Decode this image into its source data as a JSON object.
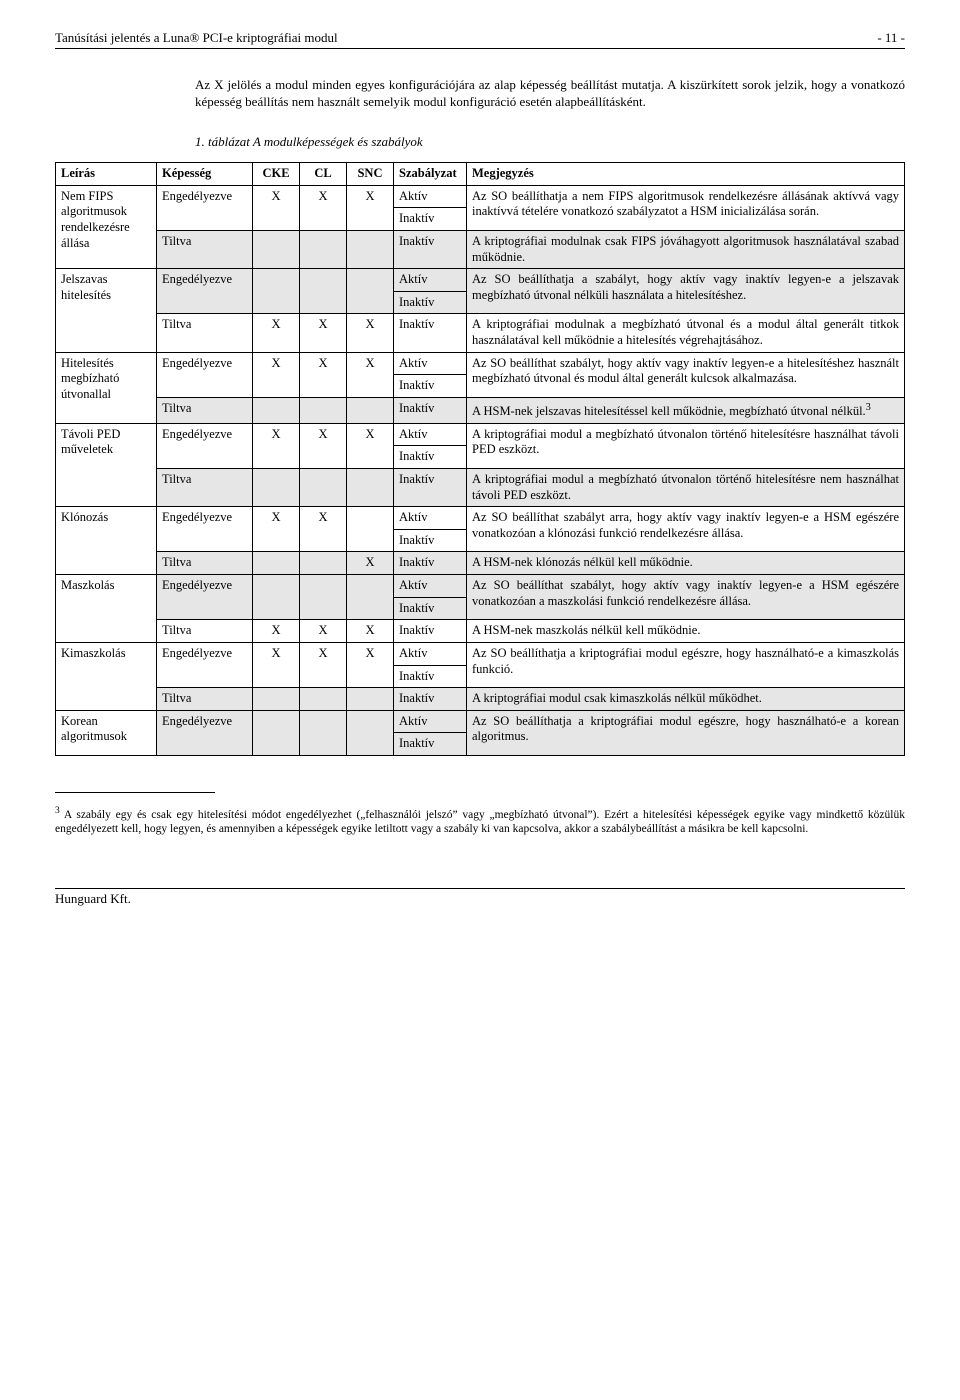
{
  "header": {
    "title": "Tanúsítási jelentés a Luna® PCI-e kriptográfiai modul",
    "page_num": "- 11 -"
  },
  "intro": "Az X jelölés a modul minden egyes konfigurációjára az alap képesség beállítást mutatja. A kiszürkített sorok jelzik, hogy a vonatkozó képesség beállítás nem használt semelyik modul konfiguráció esetén alapbeállításként.",
  "caption": "1. táblázat A modulképességek és szabályok",
  "cols": {
    "c1": "Leírás",
    "c2": "Képesség",
    "c3": "CKE",
    "c4": "CL",
    "c5": "SNC",
    "c6": "Szabályzat",
    "c7": "Megjegyzés"
  },
  "lbl": {
    "eng": "Engedélyezve",
    "tilt": "Tiltva",
    "aktiv": "Aktív",
    "inaktiv": "Inaktív",
    "X": "X"
  },
  "groups": [
    {
      "leiras": "Nem FIPS algoritmusok rendelkezésre állása",
      "eng_meg": "Az SO beállíthatja a nem FIPS algoritmusok rendelkezésre állásának aktívvá vagy inaktívvá tételére vonatkozó szabályzatot a HSM inicializálása során.",
      "tilt_meg": "A kriptográfiai modulnak csak FIPS jóváhagyott algoritmusok használatával szabad működnie."
    },
    {
      "leiras": "Jelszavas hitelesítés",
      "eng_meg": "Az SO beállíthatja a szabályt, hogy aktív vagy inaktív legyen-e a jelszavak megbízható útvonal nélküli használata a hitelesítéshez.",
      "tilt_meg": "A kriptográfiai modulnak a megbízható útvonal és a modul által generált titkok használatával kell működnie a hitelesítés végrehajtásához."
    },
    {
      "leiras": "Hitelesítés megbízható útvonallal",
      "eng_meg": "Az SO beállíthat szabályt, hogy aktív vagy inaktív legyen-e a hitelesítéshez használt megbízható útvonal és modul által generált kulcsok alkalmazása.",
      "tilt_meg": "A HSM-nek jelszavas hitelesítéssel kell működnie, megbízható útvonal nélkül."
    },
    {
      "leiras": "Távoli PED műveletek",
      "eng_meg": "A kriptográfiai modul a megbízható útvonalon történő hitelesítésre használhat távoli PED eszközt.",
      "tilt_meg": "A kriptográfiai modul a megbízható útvonalon történő hitelesítésre nem használhat távoli PED eszközt."
    },
    {
      "leiras": "Klónozás",
      "eng_meg": "Az SO beállíthat szabályt arra, hogy aktív vagy inaktív legyen-e a HSM egészére vonatkozóan a klónozási funkció rendelkezésre állása.",
      "tilt_meg": "A HSM-nek klónozás nélkül kell működnie."
    },
    {
      "leiras": "Maszkolás",
      "eng_meg": "Az SO beállíthat szabályt, hogy aktív vagy inaktív legyen-e a HSM egészére vonatkozóan a maszkolási funkció rendelkezésre állása.",
      "tilt_meg": "A HSM-nek maszkolás nélkül kell működnie."
    },
    {
      "leiras": "Kimaszkolás",
      "eng_meg": "Az SO beállíthatja a kriptográfiai modul egészre, hogy használható-e a kimaszkolás funkció.",
      "tilt_meg": "A kriptográfiai modul csak kimaszkolás nélkül működhet."
    },
    {
      "leiras": "Korean algoritmusok",
      "eng_meg": "Az SO beállíthatja a kriptográfiai modul egészre, hogy használható-e a korean algoritmus.",
      "tilt_meg": ""
    }
  ],
  "footnote_marker": "3",
  "footnote": "A szabály egy és csak egy hitelesítési módot engedélyezhet („felhasználói jelszó” vagy „megbízható útvonal”). Ezért a hitelesítési képességek egyike vagy mindkettő közülük engedélyezett kell, hogy legyen, és amennyiben a képességek egyike letiltott vagy a szabály ki van kapcsolva, akkor a szabálybeállítást a másikra be kell kapcsolni.",
  "footer": "Hunguard Kft."
}
